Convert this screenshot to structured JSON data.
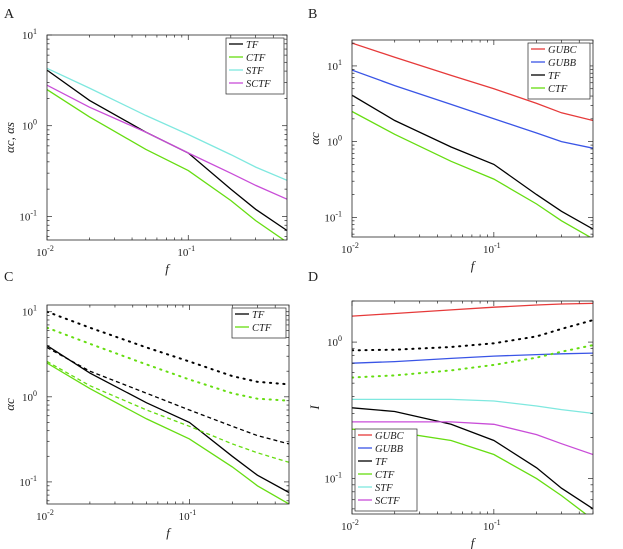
{
  "figure": {
    "panel_letters": [
      "A",
      "B",
      "C",
      "D"
    ]
  },
  "colors": {
    "TF": "#000000",
    "CTF": "#66dd11",
    "STF": "#7fe8df",
    "SCTF": "#c94dd8",
    "GUBC": "#e63a3a",
    "GUBB": "#3a55e6"
  },
  "chart_data": [
    {
      "panel": "A",
      "type": "line",
      "xscale": "log",
      "yscale": "log",
      "xlim": [
        0.01,
        0.5
      ],
      "ylim": [
        0.055,
        10
      ],
      "xlabel": "f",
      "ylabel": "αc, αs",
      "xticks": [
        {
          "v": 0.01,
          "base": "10",
          "exp": "-2"
        },
        {
          "v": 0.1,
          "base": "10",
          "exp": "-1"
        }
      ],
      "yticks": [
        {
          "v": 0.1,
          "base": "10",
          "exp": "-1"
        },
        {
          "v": 1,
          "base": "10",
          "exp": "0"
        },
        {
          "v": 10,
          "base": "10",
          "exp": "1"
        }
      ],
      "legend": "top-right",
      "series": [
        {
          "name": "TF",
          "color": "#000000",
          "dash": "solid",
          "x": [
            0.01,
            0.02,
            0.05,
            0.1,
            0.2,
            0.3,
            0.5
          ],
          "y": [
            4.1,
            1.9,
            0.85,
            0.5,
            0.2,
            0.12,
            0.07
          ]
        },
        {
          "name": "CTF",
          "color": "#66dd11",
          "dash": "solid",
          "x": [
            0.01,
            0.02,
            0.05,
            0.1,
            0.2,
            0.3,
            0.5
          ],
          "y": [
            2.5,
            1.25,
            0.55,
            0.32,
            0.15,
            0.09,
            0.052
          ]
        },
        {
          "name": "STF",
          "color": "#7fe8df",
          "dash": "solid",
          "x": [
            0.01,
            0.02,
            0.05,
            0.1,
            0.2,
            0.3,
            0.5
          ],
          "y": [
            4.3,
            2.6,
            1.3,
            0.8,
            0.48,
            0.35,
            0.25
          ]
        },
        {
          "name": "SCTF",
          "color": "#c94dd8",
          "dash": "solid",
          "x": [
            0.01,
            0.02,
            0.05,
            0.1,
            0.2,
            0.3,
            0.5
          ],
          "y": [
            2.8,
            1.6,
            0.85,
            0.5,
            0.3,
            0.22,
            0.155
          ]
        }
      ]
    },
    {
      "panel": "B",
      "type": "line",
      "xscale": "log",
      "yscale": "log",
      "xlim": [
        0.01,
        0.5
      ],
      "ylim": [
        0.055,
        22
      ],
      "xlabel": "f",
      "ylabel": "αc",
      "xticks": [
        {
          "v": 0.01,
          "base": "10",
          "exp": "-2"
        },
        {
          "v": 0.1,
          "base": "10",
          "exp": "-1"
        }
      ],
      "yticks": [
        {
          "v": 0.1,
          "base": "10",
          "exp": "-1"
        },
        {
          "v": 1,
          "base": "10",
          "exp": "0"
        },
        {
          "v": 10,
          "base": "10",
          "exp": "1"
        }
      ],
      "legend": "top-right",
      "series": [
        {
          "name": "GUBC",
          "color": "#e63a3a",
          "dash": "solid",
          "x": [
            0.01,
            0.02,
            0.05,
            0.1,
            0.2,
            0.3,
            0.5
          ],
          "y": [
            20,
            13,
            7.5,
            5,
            3.2,
            2.4,
            1.9
          ]
        },
        {
          "name": "GUBB",
          "color": "#3a55e6",
          "dash": "solid",
          "x": [
            0.01,
            0.02,
            0.05,
            0.1,
            0.2,
            0.3,
            0.5
          ],
          "y": [
            8.8,
            5.5,
            3.1,
            2.0,
            1.3,
            1.0,
            0.82
          ]
        },
        {
          "name": "TF",
          "color": "#000000",
          "dash": "solid",
          "x": [
            0.01,
            0.02,
            0.05,
            0.1,
            0.2,
            0.3,
            0.5
          ],
          "y": [
            4.1,
            1.9,
            0.85,
            0.5,
            0.2,
            0.12,
            0.07
          ]
        },
        {
          "name": "CTF",
          "color": "#66dd11",
          "dash": "solid",
          "x": [
            0.01,
            0.02,
            0.05,
            0.1,
            0.2,
            0.3,
            0.5
          ],
          "y": [
            2.5,
            1.25,
            0.55,
            0.32,
            0.15,
            0.09,
            0.052
          ]
        }
      ]
    },
    {
      "panel": "C",
      "type": "line",
      "xscale": "log",
      "yscale": "log",
      "xlim": [
        0.01,
        0.5
      ],
      "ylim": [
        0.055,
        12
      ],
      "xlabel": "f",
      "ylabel": "αc",
      "xticks": [
        {
          "v": 0.01,
          "base": "10",
          "exp": "-2"
        },
        {
          "v": 0.1,
          "base": "10",
          "exp": "-1"
        }
      ],
      "yticks": [
        {
          "v": 0.1,
          "base": "10",
          "exp": "-1"
        },
        {
          "v": 1,
          "base": "10",
          "exp": "0"
        },
        {
          "v": 10,
          "base": "10",
          "exp": "1"
        }
      ],
      "legend": "top-right",
      "series": [
        {
          "name": "TF",
          "color": "#000000",
          "dash": "solid",
          "legend": true,
          "x": [
            0.01,
            0.02,
            0.05,
            0.1,
            0.2,
            0.3,
            0.5
          ],
          "y": [
            4.0,
            1.9,
            0.85,
            0.5,
            0.2,
            0.12,
            0.075
          ]
        },
        {
          "name": "CTF",
          "color": "#66dd11",
          "dash": "solid",
          "legend": true,
          "x": [
            0.01,
            0.02,
            0.05,
            0.1,
            0.2,
            0.3,
            0.5
          ],
          "y": [
            2.5,
            1.25,
            0.55,
            0.32,
            0.15,
            0.09,
            0.055
          ]
        },
        {
          "name": "TF dashed",
          "color": "#000000",
          "dash": "dashed",
          "legend": false,
          "x": [
            0.01,
            0.02,
            0.05,
            0.1,
            0.2,
            0.3,
            0.5
          ],
          "y": [
            3.8,
            2.0,
            1.1,
            0.7,
            0.45,
            0.35,
            0.28
          ]
        },
        {
          "name": "CTF dashed",
          "color": "#66dd11",
          "dash": "dashed",
          "legend": false,
          "x": [
            0.01,
            0.02,
            0.05,
            0.1,
            0.2,
            0.3,
            0.5
          ],
          "y": [
            2.6,
            1.35,
            0.7,
            0.45,
            0.28,
            0.22,
            0.17
          ]
        },
        {
          "name": "TF dotted",
          "color": "#000000",
          "dash": "dotted",
          "legend": false,
          "x": [
            0.01,
            0.02,
            0.05,
            0.1,
            0.2,
            0.3,
            0.5
          ],
          "y": [
            10,
            6.5,
            3.8,
            2.6,
            1.75,
            1.5,
            1.4
          ]
        },
        {
          "name": "CTF dotted",
          "color": "#66dd11",
          "dash": "dotted",
          "legend": false,
          "x": [
            0.01,
            0.02,
            0.05,
            0.1,
            0.2,
            0.3,
            0.5
          ],
          "y": [
            6.5,
            4.2,
            2.4,
            1.6,
            1.1,
            0.95,
            0.9
          ]
        }
      ]
    },
    {
      "panel": "D",
      "type": "line",
      "xscale": "log",
      "yscale": "log",
      "xlim": [
        0.01,
        0.5
      ],
      "ylim": [
        0.055,
        2.0
      ],
      "xlabel": "f",
      "ylabel": "I",
      "xticks": [
        {
          "v": 0.01,
          "base": "10",
          "exp": "-2"
        },
        {
          "v": 0.1,
          "base": "10",
          "exp": "-1"
        }
      ],
      "yticks": [
        {
          "v": 0.1,
          "base": "10",
          "exp": "-1"
        },
        {
          "v": 1,
          "base": "10",
          "exp": "0"
        }
      ],
      "legend": "bottom-left",
      "series": [
        {
          "name": "GUBC",
          "color": "#e63a3a",
          "dash": "solid",
          "legend": true,
          "x": [
            0.01,
            0.02,
            0.05,
            0.1,
            0.2,
            0.3,
            0.5
          ],
          "y": [
            1.55,
            1.62,
            1.72,
            1.8,
            1.87,
            1.9,
            1.92
          ]
        },
        {
          "name": "GUBB",
          "color": "#3a55e6",
          "dash": "solid",
          "legend": true,
          "x": [
            0.01,
            0.02,
            0.05,
            0.1,
            0.2,
            0.3,
            0.5
          ],
          "y": [
            0.7,
            0.72,
            0.76,
            0.79,
            0.81,
            0.82,
            0.83
          ]
        },
        {
          "name": "TF",
          "color": "#000000",
          "dash": "solid",
          "legend": true,
          "x": [
            0.01,
            0.02,
            0.05,
            0.1,
            0.2,
            0.3,
            0.5
          ],
          "y": [
            0.33,
            0.31,
            0.25,
            0.19,
            0.12,
            0.085,
            0.06
          ]
        },
        {
          "name": "CTF",
          "color": "#66dd11",
          "dash": "solid",
          "legend": true,
          "x": [
            0.01,
            0.02,
            0.05,
            0.1,
            0.2,
            0.3,
            0.5
          ],
          "y": [
            0.23,
            0.22,
            0.19,
            0.15,
            0.1,
            0.075,
            0.05
          ]
        },
        {
          "name": "STF",
          "color": "#7fe8df",
          "dash": "solid",
          "legend": true,
          "x": [
            0.01,
            0.02,
            0.05,
            0.1,
            0.2,
            0.3,
            0.5
          ],
          "y": [
            0.38,
            0.38,
            0.38,
            0.37,
            0.34,
            0.32,
            0.3
          ]
        },
        {
          "name": "SCTF",
          "color": "#c94dd8",
          "dash": "solid",
          "legend": true,
          "x": [
            0.01,
            0.02,
            0.05,
            0.1,
            0.2,
            0.3,
            0.5
          ],
          "y": [
            0.26,
            0.26,
            0.26,
            0.25,
            0.21,
            0.18,
            0.15
          ]
        },
        {
          "name": "TF dotted",
          "color": "#000000",
          "dash": "dotted",
          "legend": false,
          "x": [
            0.01,
            0.02,
            0.05,
            0.1,
            0.2,
            0.3,
            0.5
          ],
          "y": [
            0.87,
            0.88,
            0.92,
            0.98,
            1.1,
            1.25,
            1.45
          ]
        },
        {
          "name": "CTF dotted",
          "color": "#66dd11",
          "dash": "dotted",
          "legend": false,
          "x": [
            0.01,
            0.02,
            0.05,
            0.1,
            0.2,
            0.3,
            0.5
          ],
          "y": [
            0.55,
            0.57,
            0.62,
            0.68,
            0.77,
            0.85,
            0.95
          ]
        }
      ]
    }
  ]
}
